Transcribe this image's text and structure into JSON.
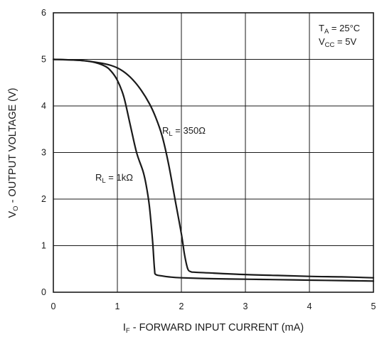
{
  "chart_data": {
    "type": "line",
    "title": "",
    "xlabel": {
      "main": "I",
      "sub": "F",
      "rest": " - FORWARD INPUT CURRENT (mA)"
    },
    "ylabel": {
      "main": "V",
      "sub": "O",
      "rest": " - OUTPUT VOLTAGE (V)"
    },
    "xlim": [
      0,
      5
    ],
    "ylim": [
      0,
      6
    ],
    "xticks": [
      "0",
      "1",
      "2",
      "3",
      "4",
      "5"
    ],
    "yticks": [
      "0",
      "1",
      "2",
      "3",
      "4",
      "5",
      "6"
    ],
    "grid": true,
    "conditions": [
      {
        "main": "T",
        "sub": "A",
        "rest": " = 25°C"
      },
      {
        "main": "V",
        "sub": "CC",
        "rest": " = 5V"
      }
    ],
    "series": [
      {
        "name": {
          "main": "R",
          "sub": "L",
          "rest": " = 350Ω"
        },
        "x": [
          0,
          0.4,
          0.7,
          0.9,
          1.05,
          1.2,
          1.35,
          1.5,
          1.6,
          1.7,
          1.8,
          1.9,
          2.0,
          2.05,
          2.1,
          2.15,
          2.2,
          2.5,
          3,
          3.5,
          4,
          4.5,
          5
        ],
        "y": [
          5.0,
          4.98,
          4.93,
          4.87,
          4.78,
          4.62,
          4.38,
          4.05,
          3.75,
          3.35,
          2.75,
          2.0,
          1.25,
          0.8,
          0.5,
          0.44,
          0.43,
          0.41,
          0.38,
          0.36,
          0.34,
          0.33,
          0.31
        ]
      },
      {
        "name": {
          "main": "R",
          "sub": "L",
          "rest": " = 1kΩ"
        },
        "x": [
          0,
          0.4,
          0.6,
          0.8,
          0.9,
          1.0,
          1.1,
          1.2,
          1.3,
          1.4,
          1.45,
          1.5,
          1.55,
          1.58,
          1.6,
          1.7,
          1.8,
          2.0,
          2.5,
          3,
          3.5,
          4,
          4.5,
          5
        ],
        "y": [
          5.0,
          4.98,
          4.95,
          4.86,
          4.75,
          4.55,
          4.2,
          3.6,
          3.0,
          2.6,
          2.3,
          1.85,
          1.1,
          0.5,
          0.38,
          0.35,
          0.33,
          0.31,
          0.29,
          0.28,
          0.27,
          0.26,
          0.25,
          0.24
        ]
      }
    ]
  }
}
